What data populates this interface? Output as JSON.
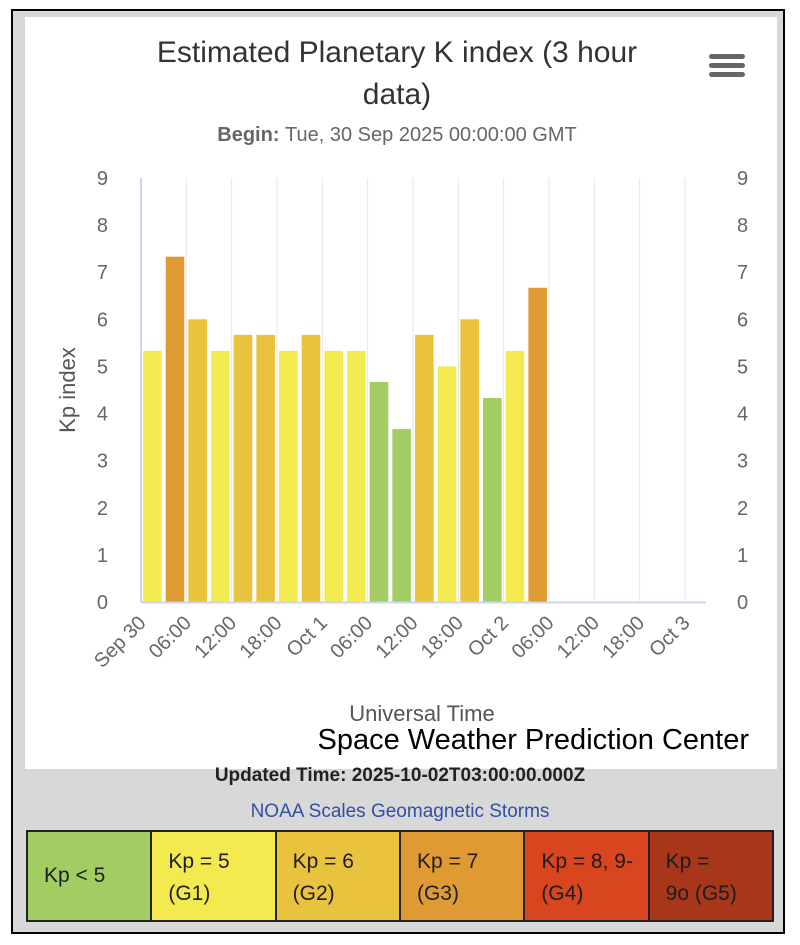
{
  "chart_data": {
    "type": "bar",
    "title": "Estimated Planetary K index (3 hour data)",
    "subtitle_label": "Begin:",
    "subtitle_value": "Tue, 30 Sep 2025 00:00:00 GMT",
    "ylabel": "Kp index",
    "xlabel": "Universal Time",
    "credit": "Space Weather Prediction Center",
    "ylim": [
      0,
      9
    ],
    "yticks": [
      "0",
      "1",
      "2",
      "3",
      "4",
      "5",
      "6",
      "7",
      "8",
      "9"
    ],
    "x_range_hours": [
      0,
      72
    ],
    "xticks": [
      {
        "hour": 0,
        "label": "Sep 30"
      },
      {
        "hour": 6,
        "label": "06:00"
      },
      {
        "hour": 12,
        "label": "12:00"
      },
      {
        "hour": 18,
        "label": "18:00"
      },
      {
        "hour": 24,
        "label": "Oct 1"
      },
      {
        "hour": 30,
        "label": "06:00"
      },
      {
        "hour": 36,
        "label": "12:00"
      },
      {
        "hour": 42,
        "label": "18:00"
      },
      {
        "hour": 48,
        "label": "Oct 2"
      },
      {
        "hour": 54,
        "label": "06:00"
      },
      {
        "hour": 60,
        "label": "12:00"
      },
      {
        "hour": 66,
        "label": "18:00"
      },
      {
        "hour": 72,
        "label": "Oct 3"
      }
    ],
    "bars": [
      {
        "hour": 0,
        "value": 5.33
      },
      {
        "hour": 3,
        "value": 7.33
      },
      {
        "hour": 6,
        "value": 6.0
      },
      {
        "hour": 9,
        "value": 5.33
      },
      {
        "hour": 12,
        "value": 5.67
      },
      {
        "hour": 15,
        "value": 5.67
      },
      {
        "hour": 18,
        "value": 5.33
      },
      {
        "hour": 21,
        "value": 5.67
      },
      {
        "hour": 24,
        "value": 5.33
      },
      {
        "hour": 27,
        "value": 5.33
      },
      {
        "hour": 30,
        "value": 4.67
      },
      {
        "hour": 33,
        "value": 3.67
      },
      {
        "hour": 36,
        "value": 5.67
      },
      {
        "hour": 39,
        "value": 5.0
      },
      {
        "hour": 42,
        "value": 6.0
      },
      {
        "hour": 45,
        "value": 4.33
      },
      {
        "hour": 48,
        "value": 5.33
      },
      {
        "hour": 51,
        "value": 6.67
      }
    ],
    "level_colors": {
      "below5": "#a3cd62",
      "g1": "#f2ea4f",
      "g2": "#e9c23e",
      "g3": "#e09a33",
      "g4": "#d9451f",
      "g5": "#a8361a"
    },
    "grid": true,
    "legend": "none"
  },
  "footer": {
    "updated": "Updated Time: 2025-10-02T03:00:00.000Z",
    "noaa_link": "NOAA Scales Geomagnetic Storms"
  },
  "scale": [
    {
      "l1": "Kp < 5",
      "l2": "",
      "color": "#a3cd62"
    },
    {
      "l1": "Kp = 5",
      "l2": "(G1)",
      "color": "#f2ea4f"
    },
    {
      "l1": "Kp = 6",
      "l2": "(G2)",
      "color": "#e9c23e"
    },
    {
      "l1": "Kp = 7",
      "l2": "(G3)",
      "color": "#e09a33"
    },
    {
      "l1": "Kp = 8, 9-",
      "l2": "(G4)",
      "color": "#d9451f"
    },
    {
      "l1": "Kp =",
      "l2": "9o (G5)",
      "color": "#a8361a"
    }
  ],
  "icons": {
    "menu": "hamburger-menu-icon"
  }
}
